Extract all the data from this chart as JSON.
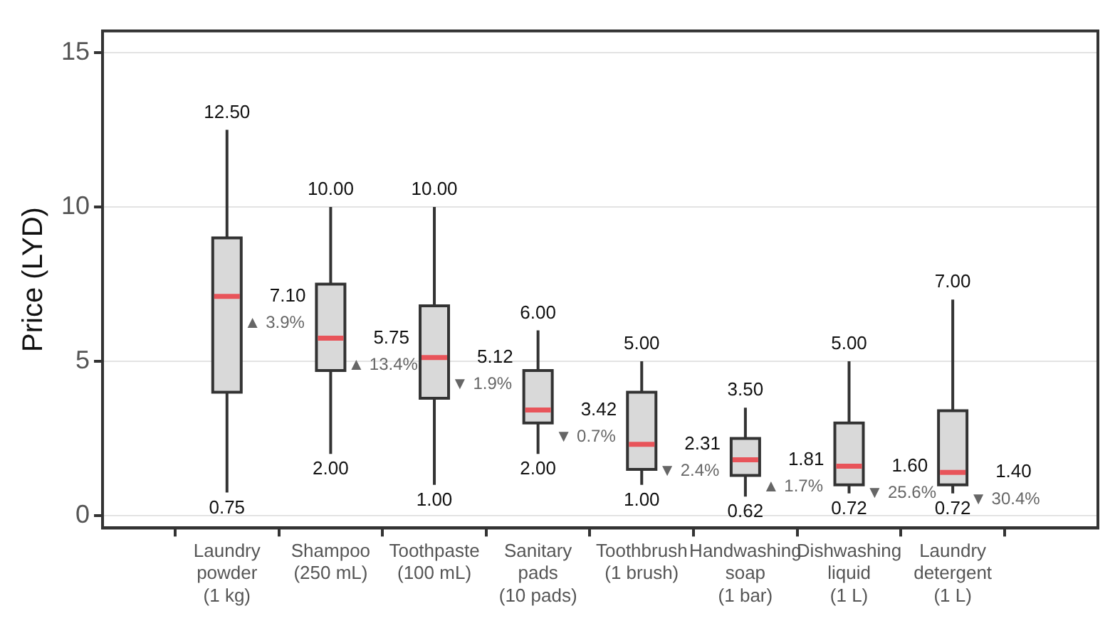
{
  "chart_data": {
    "type": "box",
    "ylabel": "Price (LYD)",
    "categories": [
      "Laundry\npowder\n(1 kg)",
      "Shampoo\n(250 mL)",
      "Toothpaste\n(100 mL)",
      "Sanitary\npads\n(10 pads)",
      "Toothbrush\n(1 brush)",
      "Handwashing\nsoap\n(1 bar)",
      "Dishwashing\nliquid\n(1 L)",
      "Laundry\ndetergent\n(1 L)"
    ],
    "color": "#d9d9d9",
    "boxes": [
      {
        "low": 0.75,
        "q1": 4.0,
        "median": 7.1,
        "q3": 9.0,
        "high": 12.5
      },
      {
        "low": 2.0,
        "q1": 4.7,
        "median": 5.75,
        "q3": 7.5,
        "high": 10.0
      },
      {
        "low": 1.0,
        "q1": 3.8,
        "median": 5.12,
        "q3": 6.8,
        "high": 10.0
      },
      {
        "low": 2.0,
        "q1": 3.0,
        "median": 3.42,
        "q3": 4.7,
        "high": 6.0
      },
      {
        "low": 1.0,
        "q1": 1.5,
        "median": 2.31,
        "q3": 4.0,
        "high": 5.0
      },
      {
        "low": 0.62,
        "q1": 1.3,
        "median": 1.81,
        "q3": 2.5,
        "high": 3.5
      },
      {
        "low": 0.72,
        "q1": 1.0,
        "median": 1.6,
        "q3": 3.0,
        "high": 5.0
      },
      {
        "low": 0.72,
        "q1": 1.0,
        "median": 1.4,
        "q3": 3.4,
        "high": 7.0
      }
    ],
    "ylim": [
      -0.4,
      15.7
    ],
    "yticks": [
      0,
      5,
      10,
      15
    ],
    "grid": "y",
    "annotations": [
      {
        "text": "12.50",
        "x": "Laundry\npowder\n(1 kg)",
        "y": 12.5
      },
      {
        "text": "0.75",
        "x": "Laundry\npowder\n(1 kg)",
        "y": 0.75
      },
      {
        "text": "7.10",
        "x": "Laundry\npowder\n(1 kg)",
        "y": 7.1
      },
      {
        "text": "▲ 3.9%",
        "x": "Laundry\npowder\n(1 kg)",
        "y": 7.1
      },
      {
        "text": "10.00",
        "x": "Shampoo\n(250 mL)",
        "y": 10.0
      },
      {
        "text": "2.00",
        "x": "Shampoo\n(250 mL)",
        "y": 2.0
      },
      {
        "text": "5.75",
        "x": "Shampoo\n(250 mL)",
        "y": 5.75
      },
      {
        "text": "▲ 13.4%",
        "x": "Shampoo\n(250 mL)",
        "y": 5.75
      },
      {
        "text": "10.00",
        "x": "Toothpaste\n(100 mL)",
        "y": 10.0
      },
      {
        "text": "1.00",
        "x": "Toothpaste\n(100 mL)",
        "y": 1.0
      },
      {
        "text": "5.12",
        "x": "Toothpaste\n(100 mL)",
        "y": 5.12
      },
      {
        "text": "▼ 1.9%",
        "x": "Toothpaste\n(100 mL)",
        "y": 5.12
      },
      {
        "text": "6.00",
        "x": "Sanitary\npads\n(10 pads)",
        "y": 6.0
      },
      {
        "text": "2.00",
        "x": "Sanitary\npads\n(10 pads)",
        "y": 2.0
      },
      {
        "text": "3.42",
        "x": "Sanitary\npads\n(10 pads)",
        "y": 3.42
      },
      {
        "text": "▼ 0.7%",
        "x": "Sanitary\npads\n(10 pads)",
        "y": 3.42
      },
      {
        "text": "5.00",
        "x": "Toothbrush\n(1 brush)",
        "y": 5.0
      },
      {
        "text": "1.00",
        "x": "Toothbrush\n(1 brush)",
        "y": 1.0
      },
      {
        "text": "2.31",
        "x": "Toothbrush\n(1 brush)",
        "y": 2.31
      },
      {
        "text": "▼ 2.4%",
        "x": "Toothbrush\n(1 brush)",
        "y": 2.31
      },
      {
        "text": "3.50",
        "x": "Handwashing\nsoap\n(1 bar)",
        "y": 3.5
      },
      {
        "text": "0.62",
        "x": "Handwashing\nsoap\n(1 bar)",
        "y": 0.62
      },
      {
        "text": "1.81",
        "x": "Handwashing\nsoap\n(1 bar)",
        "y": 1.81
      },
      {
        "text": "▲ 1.7%",
        "x": "Handwashing\nsoap\n(1 bar)",
        "y": 1.81
      },
      {
        "text": "5.00",
        "x": "Dishwashing\nliquid\n(1 L)",
        "y": 5.0
      },
      {
        "text": "0.72",
        "x": "Dishwashing\nliquid\n(1 L)",
        "y": 0.72
      },
      {
        "text": "1.60",
        "x": "Dishwashing\nliquid\n(1 L)",
        "y": 1.6
      },
      {
        "text": "▼ 25.6%",
        "x": "Dishwashing\nliquid\n(1 L)",
        "y": 1.6
      },
      {
        "text": "7.00",
        "x": "Laundry\ndetergent\n(1 L)",
        "y": 7.0
      },
      {
        "text": "0.72",
        "x": "Laundry\ndetergent\n(1 L)",
        "y": 0.72
      },
      {
        "text": "1.40",
        "x": "Laundry\ndetergent\n(1 L)",
        "y": 1.4
      },
      {
        "text": "▼ 30.4%",
        "x": "Laundry\ndetergent\n(1 L)",
        "y": 1.4
      }
    ]
  }
}
